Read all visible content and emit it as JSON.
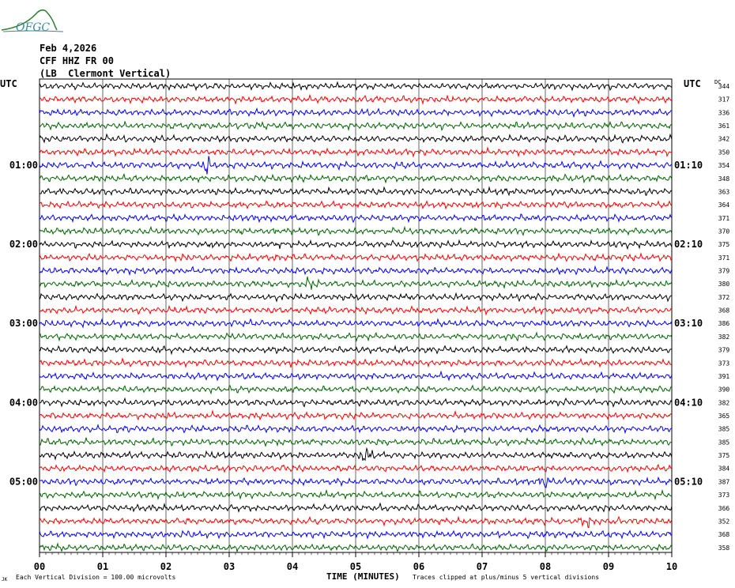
{
  "header": {
    "logo_text": "OFGC",
    "date": "Feb 4,2026",
    "station": "CFF HHZ FR 00",
    "location": "(LB  Clermont Vertical)",
    "left_timezone": "UTC",
    "right_timezone": "UTC",
    "right_column_label": "DC"
  },
  "footer": {
    "scale_note": "Each Vertical Division =  100.00 microvolts",
    "xlabel": "TIME (MINUTES)",
    "clip_note": "Traces clipped at plus/minus 5 vertical divisions",
    "corner_mark": "JK"
  },
  "colors": {
    "trace_cycle": [
      "#000000",
      "#ff0000",
      "#0000ff",
      "#006400"
    ],
    "grid": "#000000"
  },
  "chart_data": {
    "type": "line",
    "title": "",
    "xlabel": "TIME (MINUTES)",
    "x_ticks": [
      "00",
      "01",
      "02",
      "03",
      "04",
      "05",
      "06",
      "07",
      "08",
      "09",
      "10"
    ],
    "xlim": [
      0,
      10
    ],
    "trace_interval_minutes": 10,
    "traces_count": 36,
    "left_hour_labels": [
      "01:00",
      "02:00",
      "03:00",
      "04:00",
      "05:00"
    ],
    "right_hour_labels": [
      "01:10",
      "02:10",
      "03:10",
      "04:10",
      "05:10"
    ],
    "dc_offsets": [
      344,
      317,
      336,
      361,
      342,
      350,
      354,
      348,
      363,
      364,
      371,
      370,
      375,
      371,
      379,
      380,
      372,
      368,
      386,
      382,
      379,
      373,
      391,
      390,
      382,
      365,
      385,
      385,
      375,
      384,
      387,
      373,
      366,
      352,
      368,
      358
    ],
    "events": [
      {
        "trace": 6,
        "minute": 2.65,
        "strength": 3.0
      },
      {
        "trace": 15,
        "minute": 4.3,
        "strength": 1.8
      },
      {
        "trace": 28,
        "minute": 5.15,
        "strength": 1.8
      },
      {
        "trace": 33,
        "minute": 8.65,
        "strength": 1.6
      },
      {
        "trace": 30,
        "minute": 8.0,
        "strength": 1.4
      }
    ]
  }
}
